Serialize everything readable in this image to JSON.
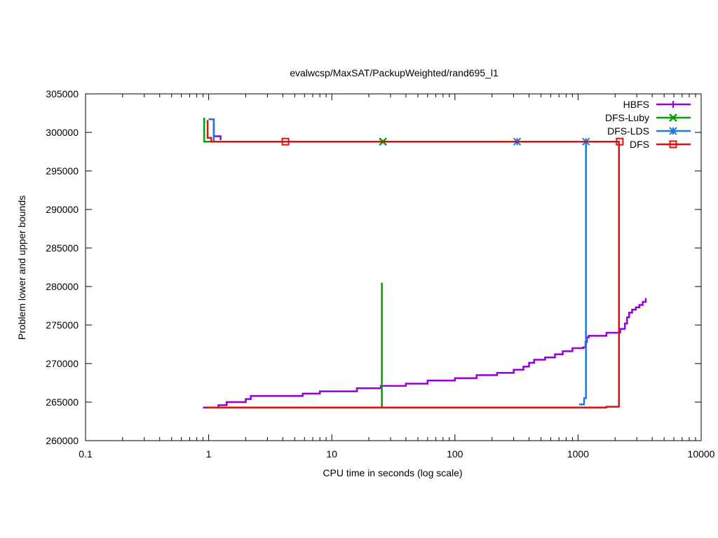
{
  "chart_data": {
    "type": "line",
    "title": "evalwcsp/MaxSAT/PackupWeighted/rand695_l1",
    "xlabel": "CPU time in seconds (log scale)",
    "ylabel": "Problem lower and upper bounds",
    "xscale": "log",
    "xlim": [
      0.1,
      10000
    ],
    "ylim": [
      260000,
      305000
    ],
    "x_ticks": [
      0.1,
      1,
      10,
      100,
      1000,
      10000
    ],
    "x_tick_labels": [
      "0.1",
      "1",
      "10",
      "100",
      "1000",
      "10000"
    ],
    "y_ticks": [
      260000,
      265000,
      270000,
      275000,
      280000,
      285000,
      290000,
      295000,
      300000,
      305000
    ],
    "y_tick_labels": [
      "260000",
      "265000",
      "270000",
      "275000",
      "280000",
      "285000",
      "290000",
      "295000",
      "300000",
      "305000"
    ],
    "grid": false,
    "legend_position": "top-right",
    "series": [
      {
        "name": "HBFS",
        "color": "#9400d3",
        "marker": "plus",
        "lower_bound": [
          [
            0.9,
            264300
          ],
          [
            1.2,
            264300
          ],
          [
            1.2,
            264600
          ],
          [
            1.4,
            264600
          ],
          [
            1.4,
            265000
          ],
          [
            2.0,
            265000
          ],
          [
            2.0,
            265400
          ],
          [
            2.2,
            265400
          ],
          [
            2.2,
            265800
          ],
          [
            5.8,
            265800
          ],
          [
            5.8,
            266100
          ],
          [
            8.0,
            266100
          ],
          [
            8.0,
            266400
          ],
          [
            16,
            266400
          ],
          [
            16,
            266800
          ],
          [
            25,
            266800
          ],
          [
            25,
            267100
          ],
          [
            40,
            267100
          ],
          [
            40,
            267400
          ],
          [
            60,
            267400
          ],
          [
            60,
            267800
          ],
          [
            100,
            267800
          ],
          [
            100,
            268100
          ],
          [
            150,
            268100
          ],
          [
            150,
            268500
          ],
          [
            220,
            268500
          ],
          [
            220,
            268800
          ],
          [
            300,
            268800
          ],
          [
            300,
            269200
          ],
          [
            360,
            269200
          ],
          [
            360,
            269600
          ],
          [
            400,
            269600
          ],
          [
            400,
            270100
          ],
          [
            440,
            270100
          ],
          [
            440,
            270500
          ],
          [
            540,
            270500
          ],
          [
            540,
            270800
          ],
          [
            650,
            270800
          ],
          [
            650,
            271200
          ],
          [
            750,
            271200
          ],
          [
            750,
            271600
          ],
          [
            900,
            271600
          ],
          [
            900,
            272000
          ],
          [
            1100,
            272000
          ],
          [
            1100,
            272100
          ],
          [
            1150,
            272100
          ],
          [
            1150,
            272800
          ],
          [
            1180,
            272800
          ],
          [
            1180,
            273400
          ],
          [
            1220,
            273400
          ],
          [
            1220,
            273600
          ],
          [
            1700,
            273600
          ],
          [
            1700,
            274000
          ],
          [
            2200,
            274000
          ],
          [
            2200,
            274500
          ],
          [
            2400,
            274500
          ],
          [
            2400,
            275200
          ],
          [
            2500,
            275200
          ],
          [
            2500,
            276000
          ],
          [
            2600,
            276000
          ],
          [
            2600,
            276600
          ],
          [
            2750,
            276600
          ],
          [
            2750,
            277000
          ],
          [
            2950,
            277000
          ],
          [
            2950,
            277300
          ],
          [
            3150,
            277300
          ],
          [
            3150,
            277600
          ],
          [
            3350,
            277600
          ],
          [
            3350,
            278000
          ],
          [
            3550,
            278000
          ],
          [
            3550,
            278500
          ]
        ],
        "upper_bound": [
          [
            1.0,
            301700
          ],
          [
            1.1,
            301700
          ],
          [
            1.1,
            299500
          ],
          [
            1.25,
            299500
          ],
          [
            1.25,
            299000
          ]
        ]
      },
      {
        "name": "DFS-Luby",
        "color": "#00a000",
        "marker": "x",
        "lower_bound": [
          [
            25.5,
            264300
          ],
          [
            25.5,
            280500
          ]
        ],
        "upper_bound": [
          [
            0.92,
            301900
          ],
          [
            0.92,
            298800
          ],
          [
            26,
            298800
          ]
        ],
        "markers": [
          [
            26,
            298800
          ]
        ]
      },
      {
        "name": "DFS-LDS",
        "color": "#1e78dc",
        "marker": "star",
        "lower_bound": [
          [
            1020,
            264700
          ],
          [
            1120,
            264700
          ],
          [
            1120,
            265500
          ],
          [
            1160,
            265500
          ],
          [
            1160,
            298800
          ]
        ],
        "upper_bound": [
          [
            1.0,
            301700
          ],
          [
            1.1,
            301700
          ],
          [
            1.1,
            298800
          ],
          [
            1160,
            298800
          ]
        ],
        "markers": [
          [
            320,
            298800
          ],
          [
            1160,
            298800
          ]
        ]
      },
      {
        "name": "DFS",
        "color": "#e01010",
        "marker": "square",
        "lower_bound": [
          [
            0.95,
            264300
          ],
          [
            1700,
            264300
          ],
          [
            1700,
            264400
          ],
          [
            2150,
            264400
          ],
          [
            2150,
            298800
          ]
        ],
        "upper_bound": [
          [
            0.98,
            301600
          ],
          [
            0.98,
            299300
          ],
          [
            1.05,
            299300
          ],
          [
            1.05,
            298800
          ],
          [
            2180,
            298800
          ]
        ],
        "markers": [
          [
            4.2,
            298800
          ],
          [
            2180,
            298800
          ]
        ]
      }
    ]
  }
}
